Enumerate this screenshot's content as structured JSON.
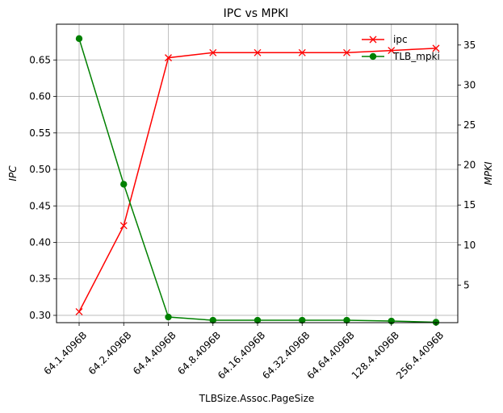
{
  "chart_data": {
    "type": "line",
    "title": "IPC vs MPKI",
    "xlabel": "TLBSize.Assoc.PageSize",
    "ylabel": "IPC",
    "y2label": "MPKI",
    "categories": [
      "64.1.4096B",
      "64.2.4096B",
      "64.4.4096B",
      "64.8.4096B",
      "64.16.4096B",
      "64.32.4096B",
      "64.64.4096B",
      "128.4.4096B",
      "256.4.4096B"
    ],
    "ylim": [
      0.29,
      0.699
    ],
    "y2lim": [
      0.3,
      37.6
    ],
    "yticks": [
      0.3,
      0.35,
      0.4,
      0.45,
      0.5,
      0.55,
      0.6,
      0.65
    ],
    "y2ticks": [
      5,
      10,
      15,
      20,
      25,
      30,
      35
    ],
    "grid": true,
    "legend": "top-right",
    "series": [
      {
        "name": "ipc",
        "axis": "left",
        "color": "#ff0000",
        "marker": "x",
        "values": [
          0.305,
          0.423,
          0.653,
          0.66,
          0.66,
          0.66,
          0.66,
          0.663,
          0.666
        ]
      },
      {
        "name": "TLB_mpki",
        "axis": "right",
        "color": "#008000",
        "marker": "o",
        "values": [
          35.8,
          17.6,
          1.0,
          0.6,
          0.6,
          0.6,
          0.6,
          0.5,
          0.35
        ]
      }
    ]
  }
}
